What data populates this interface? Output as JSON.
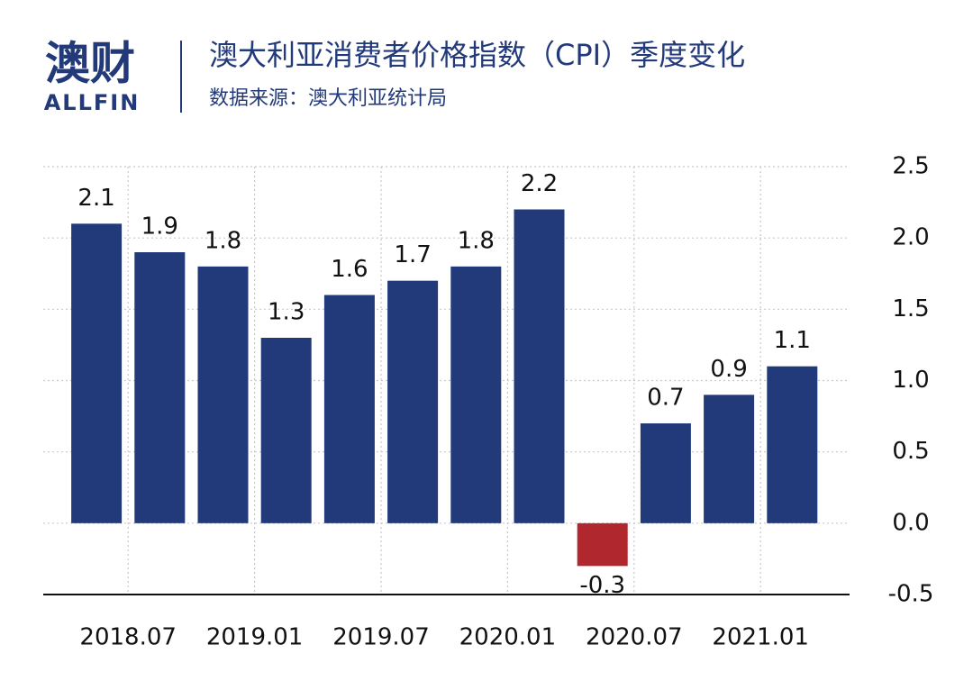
{
  "logo": {
    "mark": "澳财",
    "name": "ALLFIN"
  },
  "chart_data": {
    "type": "bar",
    "title": "澳大利亚消费者价格指数（CPI）季度变化",
    "subtitle": "数据来源：澳大利亚统计局",
    "categories": [
      "2018.07",
      null,
      "2019.01",
      null,
      "2019.07",
      null,
      "2020.01",
      null,
      "2020.07",
      null,
      "2021.01",
      null
    ],
    "values": [
      2.1,
      1.9,
      1.8,
      1.3,
      1.6,
      1.7,
      1.8,
      2.2,
      -0.3,
      0.7,
      0.9,
      1.1
    ],
    "color": "#22397a",
    "negative_color": "#b0272d",
    "ylim": [
      -0.5,
      2.5
    ],
    "yticks": [
      -0.5,
      {
        "value": 0,
        "label": "0.0"
      },
      0.5,
      {
        "value": 1,
        "label": "1.0"
      },
      1.5,
      {
        "value": 2,
        "label": "2.0"
      },
      2.5
    ],
    "y_axis_side": "right",
    "grid": true
  }
}
